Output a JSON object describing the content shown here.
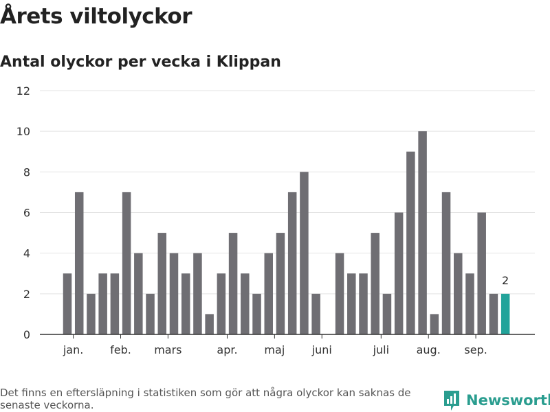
{
  "title": "Årets viltolyckor",
  "subtitle": "Antal olyckor per vecka i Klippan",
  "footnote": "Det finns en eftersläpning i statistiken som gör att några olyckor kan saknas de senaste veckorna.",
  "brand": {
    "name": "Newsworthy",
    "color": "#2a9d8f",
    "icon": "chart-bubble-icon"
  },
  "chart_data": {
    "type": "bar",
    "title": "Årets viltolyckor",
    "subtitle": "Antal olyckor per vecka i Klippan",
    "xlabel": "",
    "ylabel": "",
    "ylim": [
      0,
      12
    ],
    "yticks": [
      0,
      2,
      4,
      6,
      8,
      10,
      12
    ],
    "grid": true,
    "bar_color": "#6f6e73",
    "highlight_color": "#22a39a",
    "highlight_index": 37,
    "highlight_label": "2",
    "weeks": [
      1,
      2,
      3,
      4,
      5,
      6,
      7,
      8,
      9,
      10,
      11,
      12,
      13,
      14,
      15,
      16,
      17,
      18,
      19,
      20,
      21,
      22,
      23,
      24,
      25,
      26,
      27,
      28,
      29,
      30,
      31,
      32,
      33,
      34,
      35,
      36,
      37,
      38
    ],
    "values": [
      3,
      7,
      2,
      3,
      3,
      7,
      4,
      2,
      5,
      4,
      3,
      4,
      1,
      3,
      5,
      3,
      2,
      4,
      5,
      7,
      8,
      2,
      0,
      4,
      3,
      3,
      5,
      2,
      6,
      9,
      10,
      1,
      7,
      4,
      3,
      6,
      2,
      2
    ],
    "month_labels": [
      {
        "label": "jan.",
        "week": 1.5
      },
      {
        "label": "feb.",
        "week": 5.5
      },
      {
        "label": "mars",
        "week": 9.5
      },
      {
        "label": "apr.",
        "week": 14.5
      },
      {
        "label": "maj",
        "week": 18.5
      },
      {
        "label": "juni",
        "week": 22.5
      },
      {
        "label": "juli",
        "week": 27.5
      },
      {
        "label": "aug.",
        "week": 31.5
      },
      {
        "label": "sep.",
        "week": 35.5
      }
    ]
  }
}
